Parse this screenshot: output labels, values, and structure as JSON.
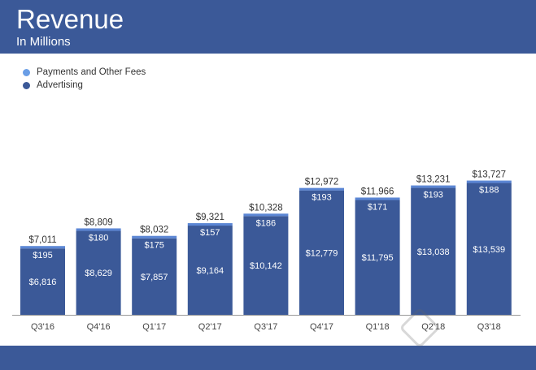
{
  "header": {
    "title": "Revenue",
    "subtitle": "In Millions"
  },
  "colors": {
    "header_bg": "#3b5998",
    "advertising": "#3b5998",
    "payments": "#5b86d4",
    "legend_payments_dot": "#6a9ee6",
    "legend_advertising_dot": "#3b5998"
  },
  "chart_data": {
    "type": "bar",
    "stacked": true,
    "categories": [
      "Q3'16",
      "Q4'16",
      "Q1'17",
      "Q2'17",
      "Q3'17",
      "Q4'17",
      "Q1'18",
      "Q2'18",
      "Q3'18"
    ],
    "series": [
      {
        "name": "Advertising",
        "values": [
          6816,
          8629,
          7857,
          9164,
          10142,
          12779,
          11795,
          13038,
          13539
        ],
        "labels": [
          "$6,816",
          "$8,629",
          "$7,857",
          "$9,164",
          "$10,142",
          "$12,779",
          "$11,795",
          "$13,038",
          "$13,539"
        ]
      },
      {
        "name": "Payments and Other Fees",
        "values": [
          195,
          180,
          175,
          157,
          186,
          193,
          171,
          193,
          188
        ],
        "labels": [
          "$195",
          "$180",
          "$175",
          "$157",
          "$186",
          "$193",
          "$171",
          "$193",
          "$188"
        ]
      }
    ],
    "totals": [
      7011,
      8809,
      8032,
      9321,
      10328,
      12972,
      11966,
      13231,
      13727
    ],
    "total_labels": [
      "$7,011",
      "$8,809",
      "$8,032",
      "$9,321",
      "$10,328",
      "$12,972",
      "$11,966",
      "$13,231",
      "$13,727"
    ],
    "ylim": [
      0,
      14000
    ],
    "legend_position": "top-left",
    "grid": false,
    "title": "Revenue",
    "subtitle": "In Millions"
  }
}
